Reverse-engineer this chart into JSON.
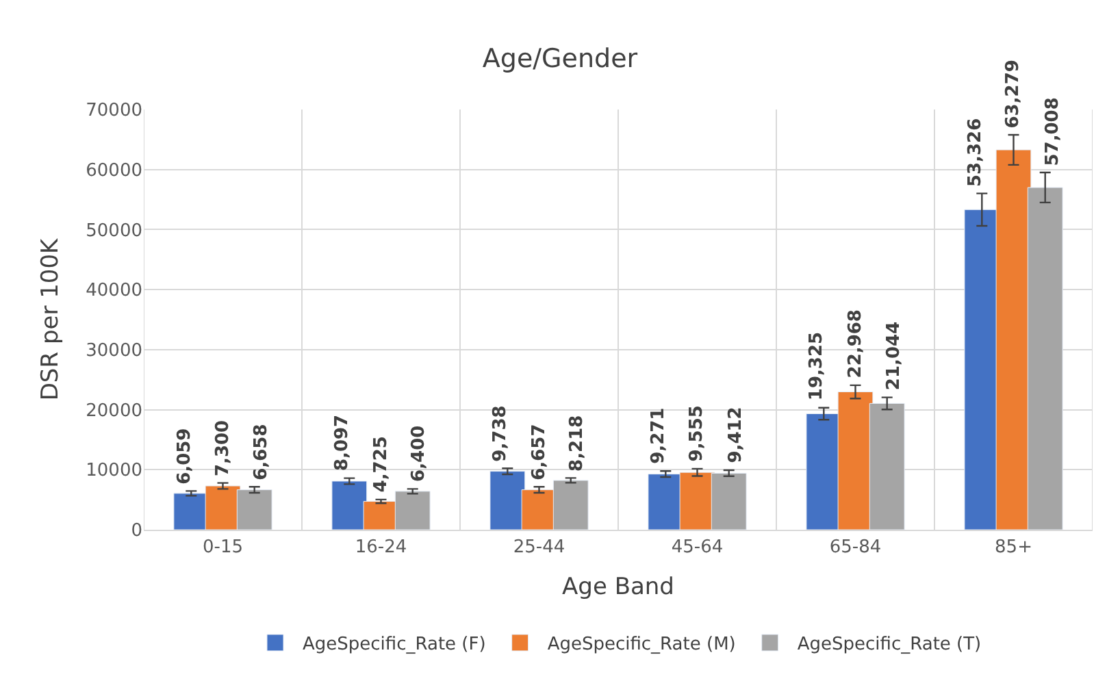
{
  "chart_data": {
    "type": "bar",
    "title": "Age/Gender",
    "xlabel": "Age Band",
    "ylabel": "DSR per 100K",
    "categories": [
      "0-15",
      "16-24",
      "25-44",
      "45-64",
      "65-84",
      "85+"
    ],
    "series": [
      {
        "name": "AgeSpecific_Rate (F)",
        "color": "#4472c4",
        "values": [
          6059,
          8097,
          9738,
          9271,
          19325,
          53326
        ],
        "errors": [
          400,
          500,
          500,
          500,
          1000,
          2700
        ],
        "value_labels": [
          "6,059",
          "8,097",
          "9,738",
          "9,271",
          "19,325",
          "53,326"
        ]
      },
      {
        "name": "AgeSpecific_Rate (M)",
        "color": "#ed7d31",
        "values": [
          7300,
          4725,
          6657,
          9555,
          22968,
          63279
        ],
        "errors": [
          500,
          300,
          500,
          600,
          1100,
          2500
        ],
        "value_labels": [
          "7,300",
          "4,725",
          "6,657",
          "9,555",
          "22,968",
          "63,279"
        ]
      },
      {
        "name": "AgeSpecific_Rate (T)",
        "color": "#a5a5a5",
        "values": [
          6658,
          6400,
          8218,
          9412,
          21044,
          57008
        ],
        "errors": [
          500,
          400,
          400,
          500,
          1000,
          2500
        ],
        "value_labels": [
          "6,658",
          "6,400",
          "8,218",
          "9,412",
          "21,044",
          "57,008"
        ]
      }
    ],
    "ylim": [
      0,
      70000
    ],
    "yticks": [
      0,
      10000,
      20000,
      30000,
      40000,
      50000,
      60000,
      70000
    ],
    "grid": true,
    "legend": "bottom"
  }
}
